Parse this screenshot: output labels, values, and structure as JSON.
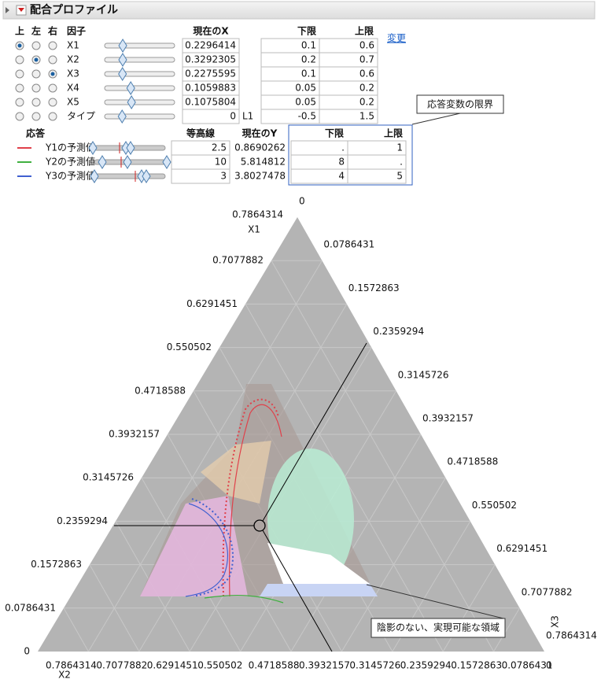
{
  "header": {
    "title": "配合プロファイル"
  },
  "factors": {
    "columns": [
      "上",
      "左",
      "右",
      "因子",
      "現在のX",
      "下限",
      "上限"
    ],
    "change_link": "変更",
    "rows": [
      {
        "name": "X1",
        "current": "0.2296414",
        "lower": "0.1",
        "upper": "0.6",
        "radio": 0
      },
      {
        "name": "X2",
        "current": "0.3292305",
        "lower": "0.2",
        "upper": "0.7",
        "radio": 1
      },
      {
        "name": "X3",
        "current": "0.2275595",
        "lower": "0.1",
        "upper": "0.6",
        "radio": 2
      },
      {
        "name": "X4",
        "current": "0.1059883",
        "lower": "0.05",
        "upper": "0.2",
        "radio": null
      },
      {
        "name": "X5",
        "current": "0.1075804",
        "lower": "0.05",
        "upper": "0.2",
        "radio": null
      },
      {
        "name": "タイプ",
        "current": "0",
        "unit": "L1",
        "lower": "-0.5",
        "upper": "1.5",
        "radio": null
      }
    ]
  },
  "responses": {
    "columns": [
      "応答",
      "等高線",
      "現在のY",
      "下限",
      "上限"
    ],
    "callout": "応答変数の限界",
    "rows": [
      {
        "name": "Y1の予測値",
        "color": "#e0404a",
        "contour": "2.5",
        "current": "0.8690262",
        "lower": ".",
        "upper": "1"
      },
      {
        "name": "Y2の予測値",
        "color": "#40b040",
        "contour": "10",
        "current": "5.814812",
        "lower": "8",
        "upper": "."
      },
      {
        "name": "Y3の予測値",
        "color": "#4060d0",
        "contour": "3",
        "current": "3.8027478",
        "lower": "4",
        "upper": "5"
      }
    ]
  },
  "ternary": {
    "axes": [
      "X1",
      "X2",
      "X3"
    ],
    "left_ticks": [
      "0.7864314",
      "0.7077882",
      "0.6291451",
      "0.550502",
      "0.4718588",
      "0.3932157",
      "0.3145726",
      "0.2359294",
      "0.1572863",
      "0.0786431",
      "0"
    ],
    "right_ticks": [
      "0",
      "0.0786431",
      "0.1572863",
      "0.2359294",
      "0.3145726",
      "0.3932157",
      "0.4718588",
      "0.550502",
      "0.6291451",
      "0.7077882",
      "0.7864314"
    ],
    "bottom_ticks": [
      "0.7864314",
      "0.7077882",
      "0.6291451",
      "0.550502",
      "0.4718588",
      "0.3932157",
      "0.3145726",
      "0.2359294",
      "0.1572863",
      "0.0786431",
      "0"
    ],
    "callout": "陰影のない、実現可能な領域"
  }
}
